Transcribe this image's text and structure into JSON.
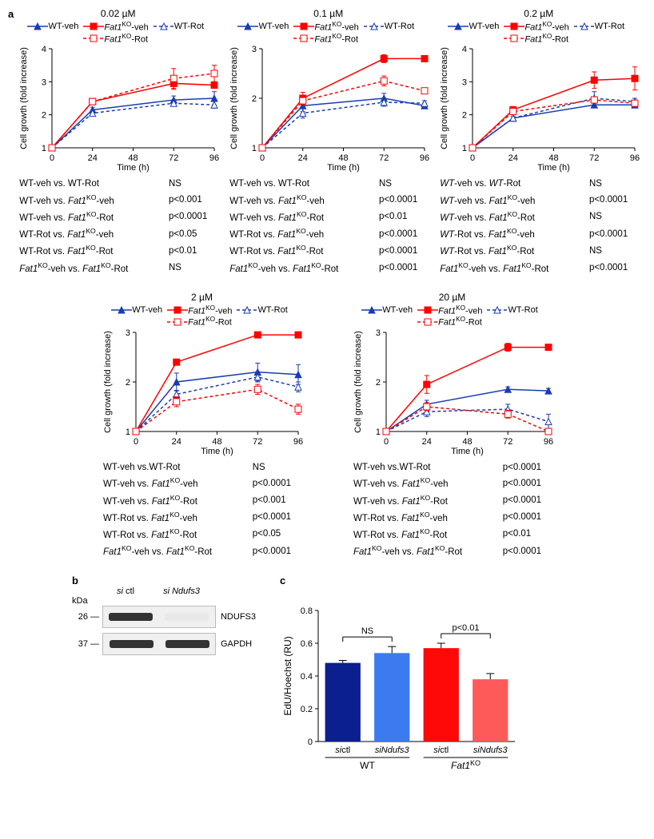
{
  "figure_labels": {
    "a": "a",
    "b": "b",
    "c": "c"
  },
  "legend_labels": {
    "wt_veh": "WT-veh",
    "wt_rot": "WT-Rot",
    "ko_veh": "-veh",
    "ko_rot": "-Rot",
    "ko_prefix": "Fat1",
    "ko_sup": "KO"
  },
  "axes": {
    "xlabel": "Time (h)",
    "ylabel": "Cell growth (fold increase)",
    "xticks": [
      0,
      24,
      48,
      72,
      96
    ],
    "xlim": [
      0,
      96
    ]
  },
  "colors": {
    "wt": "#1a3db0",
    "ko": "#ff0000",
    "bar_wt_ctl": "#0b1f8f",
    "bar_wt_si": "#3c7af0",
    "bar_ko_ctl": "#ff0808",
    "bar_ko_si": "#ff5a5a",
    "axis": "#000000",
    "background": "#ffffff"
  },
  "line_style": {
    "veh": {
      "dash": "",
      "marker": "filled"
    },
    "rot": {
      "dash": "4,3",
      "marker": "open"
    },
    "width": 1.5,
    "marker_size": 4
  },
  "charts": [
    {
      "title": "0.02  µM",
      "ylim": [
        1,
        4
      ],
      "yticks": [
        1,
        2,
        3,
        4
      ],
      "time": [
        0,
        24,
        72,
        96
      ],
      "series": {
        "wt_veh": [
          1.0,
          2.15,
          2.45,
          2.5
        ],
        "wt_rot": [
          1.0,
          2.05,
          2.35,
          2.3
        ],
        "ko_veh": [
          1.0,
          2.4,
          2.95,
          2.9
        ],
        "ko_rot": [
          1.0,
          2.4,
          3.1,
          3.25
        ]
      },
      "err": {
        "wt_veh": [
          0,
          0.08,
          0.12,
          0.2
        ],
        "wt_rot": [
          0,
          0.08,
          0.08,
          0.1
        ],
        "ko_veh": [
          0,
          0.05,
          0.18,
          0.1
        ],
        "ko_rot": [
          0,
          0.05,
          0.3,
          0.25
        ]
      },
      "stats": [
        [
          "WT-veh vs. WT-Rot",
          "NS"
        ],
        [
          "WT-veh vs. <i>Fat1</i><sup>KO</sup>-veh",
          "p<0.001"
        ],
        [
          "WT-veh vs. <i>Fat1</i><sup>KO</sup>-Rot",
          "p<0.0001"
        ],
        [
          "WT-Rot vs. <i>Fat1</i><sup>KO</sup>-veh",
          "p<0.05"
        ],
        [
          "WT-Rot vs. <i>Fat1</i><sup>KO</sup>-Rot",
          "p<0.01"
        ],
        [
          "<i>Fat1</i><sup>KO</sup>-veh vs. <i>Fat1</i><sup>KO</sup>-Rot",
          "NS"
        ]
      ]
    },
    {
      "title": "0.1  µM",
      "ylim": [
        1,
        3
      ],
      "yticks": [
        1,
        2,
        3
      ],
      "time": [
        0,
        24,
        72,
        96
      ],
      "series": {
        "wt_veh": [
          1.0,
          1.85,
          2.0,
          1.85
        ],
        "wt_rot": [
          1.0,
          1.7,
          1.92,
          1.9
        ],
        "ko_veh": [
          1.0,
          2.0,
          2.8,
          2.8
        ],
        "ko_rot": [
          1.0,
          1.95,
          2.35,
          2.15
        ]
      },
      "err": {
        "wt_veh": [
          0,
          0.12,
          0.1,
          0.05
        ],
        "wt_rot": [
          0,
          0.1,
          0.08,
          0.05
        ],
        "ko_veh": [
          0,
          0.12,
          0.08,
          0.05
        ],
        "ko_rot": [
          0,
          0.08,
          0.1,
          0.05
        ]
      },
      "stats": [
        [
          "WT-veh vs. WT-Rot",
          "NS"
        ],
        [
          "WT-veh vs. <i>Fat1</i><sup>KO</sup>-veh",
          "p<0.0001"
        ],
        [
          "WT-veh vs. <i>Fat1</i><sup>KO</sup>-Rot",
          "p<0.01"
        ],
        [
          "WT-Rot vs. <i>Fat1</i><sup>KO</sup>-veh",
          "p<0.0001"
        ],
        [
          "WT-Rot vs. <i>Fat1</i><sup>KO</sup>-Rot",
          "p<0.0001"
        ],
        [
          "<i>Fat1</i><sup>KO</sup>-veh vs. <i>Fat1</i><sup>KO</sup>-Rot",
          "p<0.0001"
        ]
      ]
    },
    {
      "title": "0.2  µM",
      "ylim": [
        1,
        4
      ],
      "yticks": [
        1,
        2,
        3,
        4
      ],
      "time": [
        0,
        24,
        72,
        96
      ],
      "series": {
        "wt_veh": [
          1.0,
          1.9,
          2.3,
          2.3
        ],
        "wt_rot": [
          1.0,
          1.9,
          2.5,
          2.4
        ],
        "ko_veh": [
          1.0,
          2.15,
          3.05,
          3.1
        ],
        "ko_rot": [
          1.0,
          2.1,
          2.45,
          2.35
        ]
      },
      "err": {
        "wt_veh": [
          0,
          0.05,
          0.05,
          0.05
        ],
        "wt_rot": [
          0,
          0.1,
          0.2,
          0.1
        ],
        "ko_veh": [
          0,
          0.1,
          0.25,
          0.35
        ],
        "ko_rot": [
          0,
          0.08,
          0.08,
          0.05
        ]
      },
      "stats": [
        [
          "<i>WT</i>-veh vs. <i>WT</i>-Rot",
          "NS"
        ],
        [
          "<i>WT</i>-veh vs. <i>Fat1</i><sup>KO</sup>-veh",
          "p<0.0001"
        ],
        [
          "<i>WT</i>-veh vs. <i>Fat1</i><sup>KO</sup>-Rot",
          "NS"
        ],
        [
          "<i>WT</i>-Rot vs. <i>Fat1</i><sup>KO</sup>-veh",
          "p<0.0001"
        ],
        [
          "<i>WT</i>-Rot vs. <i>Fat1</i><sup>KO</sup>-Rot",
          "NS"
        ],
        [
          "<i>Fat1</i><sup>KO</sup>-veh vs. <i>Fat1</i><sup>KO</sup>-Rot",
          "p<0.0001"
        ]
      ]
    },
    {
      "title": "2  µM",
      "ylim": [
        1,
        3
      ],
      "yticks": [
        1,
        2,
        3
      ],
      "time": [
        0,
        24,
        72,
        96
      ],
      "series": {
        "wt_veh": [
          1.0,
          2.0,
          2.2,
          2.15
        ],
        "wt_rot": [
          1.0,
          1.75,
          2.1,
          1.9
        ],
        "ko_veh": [
          1.0,
          2.4,
          2.95,
          2.95
        ],
        "ko_rot": [
          1.0,
          1.6,
          1.85,
          1.45
        ]
      },
      "err": {
        "wt_veh": [
          0,
          0.18,
          0.18,
          0.2
        ],
        "wt_rot": [
          0,
          0.08,
          0.1,
          0.1
        ],
        "ko_veh": [
          0,
          0.02,
          0.02,
          0.02
        ],
        "ko_rot": [
          0,
          0.1,
          0.1,
          0.1
        ]
      },
      "stats": [
        [
          "WT-veh vs.WT-Rot",
          "NS"
        ],
        [
          "WT-veh vs. <i>Fat1</i><sup>KO</sup>-veh",
          "p<0.0001"
        ],
        [
          "WT-veh vs. <i>Fat1</i><sup>KO</sup>-Rot",
          "p<0.001"
        ],
        [
          "WT-Rot vs. <i>Fat1</i><sup>KO</sup>-veh",
          "p<0.0001"
        ],
        [
          "WT-Rot vs. <i>Fat1</i><sup>KO</sup>-Rot",
          "p<0.05"
        ],
        [
          "<i>Fat1</i><sup>KO</sup>-veh vs. <i>Fat1</i><sup>KO</sup>-Rot",
          "p<0.0001"
        ]
      ]
    },
    {
      "title": "20  µM",
      "ylim": [
        1,
        3
      ],
      "yticks": [
        1,
        2,
        3
      ],
      "time": [
        0,
        24,
        72,
        96
      ],
      "series": {
        "wt_veh": [
          1.0,
          1.55,
          1.85,
          1.82
        ],
        "wt_rot": [
          1.0,
          1.4,
          1.45,
          1.2
        ],
        "ko_veh": [
          1.0,
          1.95,
          2.7,
          2.7
        ],
        "ko_rot": [
          1.0,
          1.5,
          1.35,
          1.0
        ]
      },
      "err": {
        "wt_veh": [
          0,
          0.08,
          0.05,
          0.05
        ],
        "wt_rot": [
          0,
          0.1,
          0.1,
          0.15
        ],
        "ko_veh": [
          0,
          0.18,
          0.08,
          0.05
        ],
        "ko_rot": [
          0,
          0.08,
          0.08,
          0.05
        ]
      },
      "stats": [
        [
          "WT-veh vs.WT-Rot",
          "p<0.0001"
        ],
        [
          "WT-veh vs. <i>Fat1</i><sup>KO</sup>-veh",
          "p<0.0001"
        ],
        [
          "WT-veh vs. <i>Fat1</i><sup>KO</sup>-Rot",
          "p<0.0001"
        ],
        [
          "WT-Rot vs. <i>Fat1</i><sup>KO</sup>-veh",
          "p<0.0001"
        ],
        [
          "WT-Rot vs. <i>Fat1</i><sup>KO</sup>-Rot",
          "p<0.01"
        ],
        [
          "<i>Fat1</i><sup>KO</sup>-veh vs. <i>Fat1</i><sup>KO</sup>-Rot",
          "p<0.0001"
        ]
      ]
    }
  ],
  "panel_b": {
    "kda_label": "kDa",
    "lanes": [
      "si ctl",
      "si Ndufs3"
    ],
    "lane_styles": {
      "prefix_italic": "si"
    },
    "rows": [
      {
        "kda": "26",
        "label": "NDUFS3",
        "bands": [
          "dark",
          "faint"
        ]
      },
      {
        "kda": "37",
        "label": "GAPDH",
        "bands": [
          "dark",
          "dark"
        ]
      }
    ]
  },
  "panel_c": {
    "ylabel": "EdU/Hoechst (RU)",
    "ylim": [
      0,
      0.8
    ],
    "yticks": [
      0,
      0.2,
      0.4,
      0.6,
      0.8
    ],
    "groups": [
      {
        "label": "sictl",
        "group": "WT",
        "value": 0.48,
        "err": 0.015,
        "color": "bar_wt_ctl"
      },
      {
        "label": "siNdufs3",
        "group": "WT",
        "value": 0.54,
        "err": 0.04,
        "color": "bar_wt_si"
      },
      {
        "label": "sictl",
        "group": "Fat1KO",
        "value": 0.57,
        "err": 0.03,
        "color": "bar_ko_ctl"
      },
      {
        "label": "siNdufs3",
        "group": "Fat1KO",
        "value": 0.38,
        "err": 0.035,
        "color": "bar_ko_si"
      }
    ],
    "annotations": [
      {
        "between": [
          0,
          1
        ],
        "text": "NS"
      },
      {
        "between": [
          2,
          3
        ],
        "text": "p<0.01"
      }
    ],
    "group_labels": {
      "WT": "WT",
      "Fat1KO_prefix": "Fat1",
      "Fat1KO_sup": "KO"
    }
  }
}
